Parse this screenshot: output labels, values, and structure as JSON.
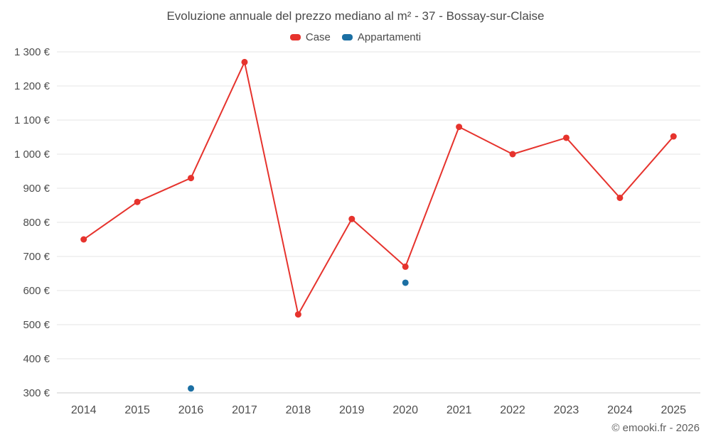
{
  "header": {
    "title": "Evoluzione annuale del prezzo mediano al m² - 37 - Bossay-sur-Claise"
  },
  "legend": {
    "items": [
      {
        "label": "Case",
        "color": "#e6332d"
      },
      {
        "label": "Appartamenti",
        "color": "#1b6fa3"
      }
    ]
  },
  "footer": {
    "attribution": "© emooki.fr - 2026"
  },
  "chart_data": {
    "type": "line",
    "title": "Evoluzione annuale del prezzo mediano al m² - 37 - Bossay-sur-Claise",
    "categories": [
      "2014",
      "2015",
      "2016",
      "2017",
      "2018",
      "2019",
      "2020",
      "2021",
      "2022",
      "2023",
      "2024",
      "2025"
    ],
    "series": [
      {
        "name": "Case",
        "type": "line",
        "color": "#e6332d",
        "values": [
          750,
          860,
          930,
          1270,
          530,
          810,
          670,
          1080,
          1000,
          1048,
          872,
          1052
        ]
      },
      {
        "name": "Appartamenti",
        "type": "scatter",
        "color": "#1b6fa3",
        "values": [
          null,
          null,
          313,
          null,
          null,
          null,
          623,
          null,
          null,
          null,
          null,
          null
        ]
      }
    ],
    "xlabel": "",
    "ylabel": "",
    "ylim": [
      300,
      1300
    ],
    "ytick_step": 100,
    "y_suffix": " €",
    "grid": true,
    "legend_position": "top",
    "grid_color": "#e6e6e6",
    "axis_line_color": "#cccccc",
    "text_color": "#4d4d4d"
  }
}
